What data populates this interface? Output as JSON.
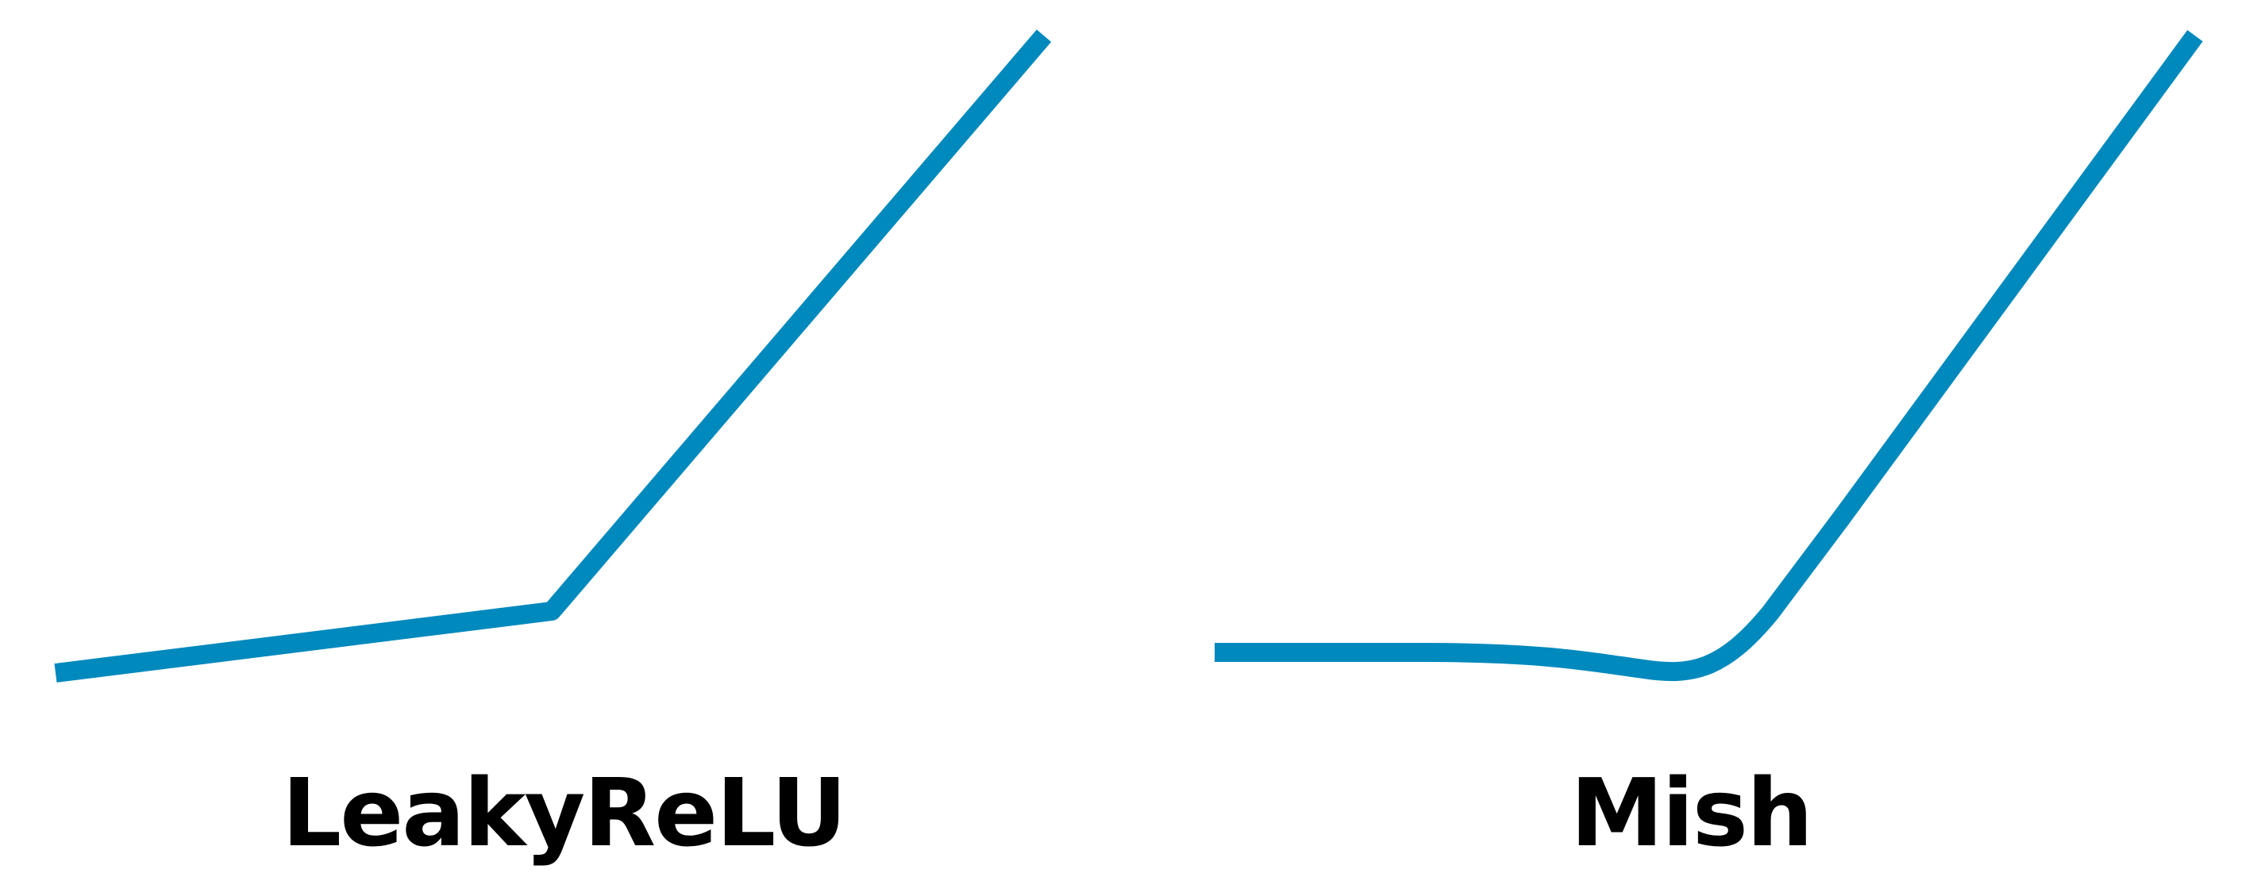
{
  "colors": {
    "curve": "#0089bd",
    "background": "#ffffff",
    "label": "#000000"
  },
  "panels": [
    {
      "key": "leaky_relu",
      "label": "LeakyReLU",
      "curve_shape": "piecewise-linear"
    },
    {
      "key": "mish",
      "label": "Mish",
      "curve_shape": "smooth"
    }
  ]
}
